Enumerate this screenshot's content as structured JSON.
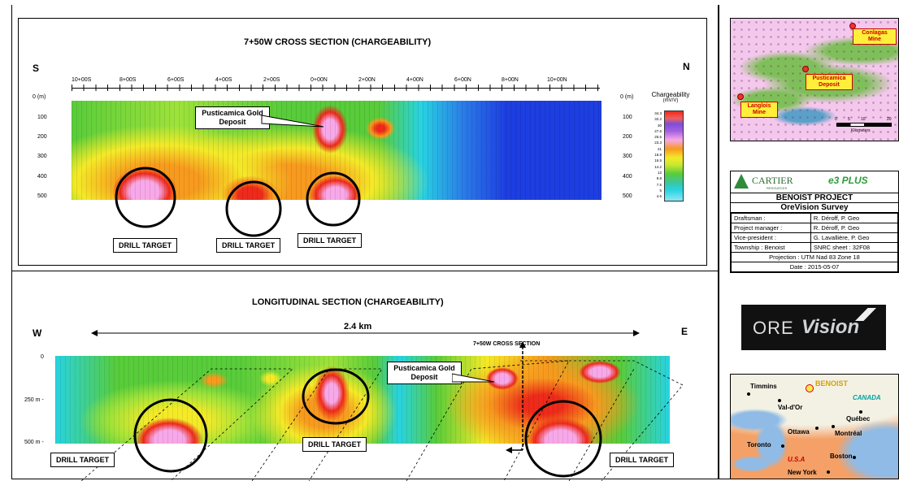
{
  "cross_section": {
    "title": "7+50W CROSS SECTION (CHARGEABILITY)",
    "left_dir": "S",
    "right_dir": "N",
    "top_ticks": [
      "10+00S",
      "8+00S",
      "6+00S",
      "4+00S",
      "2+00S",
      "0+00N",
      "2+00N",
      "4+00N",
      "6+00N",
      "8+00N",
      "10+00N"
    ],
    "depth_ticks": [
      "0 (m)",
      "100",
      "200",
      "300",
      "400",
      "500"
    ],
    "depth_ticks_right": [
      "0 (m)",
      "100",
      "200",
      "300",
      "400",
      "500"
    ],
    "legend_title": "Chargeability",
    "legend_unit": "(mV/V)",
    "legend_values": [
      "34.3",
      "32.2",
      "30",
      "27.6",
      "25.5",
      "23.3",
      "21",
      "18.8",
      "16.5",
      "14.2",
      "12",
      "9.8",
      "7.5",
      "5",
      "4.6"
    ],
    "deposit_label": "Pusticamica Gold Deposit",
    "drill_targets": [
      "DRILL TARGET",
      "DRILL TARGET",
      "DRILL TARGET"
    ]
  },
  "longitudinal": {
    "title": "LONGITUDINAL SECTION (CHARGEABILITY)",
    "left_dir": "W",
    "right_dir": "E",
    "distance": "2.4 km",
    "cross_ref": "7+50W CROSS SECTION",
    "depth_ticks": [
      "0",
      "250 m -",
      "500 m -"
    ],
    "deposit_label": "Pusticamica Gold Deposit",
    "drill_targets": [
      "DRILL TARGET",
      "DRILL TARGET",
      "DRILL TARGET"
    ]
  },
  "geo_map": {
    "labels": [
      "Conlagas Mine",
      "Pusticamica Deposit",
      "Langlois Mine"
    ],
    "scale_ticks": [
      "0",
      "5",
      "10",
      "20"
    ],
    "scale_unit": "Kilometers"
  },
  "title_block": {
    "logo1": "CARTIER",
    "logo1_sub": "RESOURCES",
    "logo2": "e3 PLUS",
    "project": "BENOIST PROJECT",
    "survey": "OreVision Survey",
    "rows": [
      {
        "label": "Draftsman :",
        "value": "R. Déroff, P. Geo"
      },
      {
        "label": "Project manager :",
        "value": "R. Déroff, P. Geo"
      },
      {
        "label": "Vice-president :",
        "value": "G. Lavallière, P. Geo"
      },
      {
        "label": "Township : Benoist",
        "value": "SNRC sheet : 32F08"
      }
    ],
    "projection": "Projection : UTM Nad 83 Zone 18",
    "date": "Date : 2015-05-07"
  },
  "orevision_logo": {
    "left": "ORE",
    "right": "Vision"
  },
  "location_map": {
    "cities": [
      "Timmins",
      "BENOIST",
      "CANADA",
      "Val-d'Or",
      "Québec",
      "Ottawa",
      "Montréal",
      "Toronto",
      "U.S.A",
      "Boston",
      "New York"
    ]
  },
  "colors": {
    "pink": "#f7a8e8",
    "red": "#ee2a1a",
    "orange": "#f79a1e",
    "yellow": "#f4ea28",
    "green": "#58cc3a",
    "cyan": "#27d3e2",
    "blue": "#1d3ee0"
  }
}
